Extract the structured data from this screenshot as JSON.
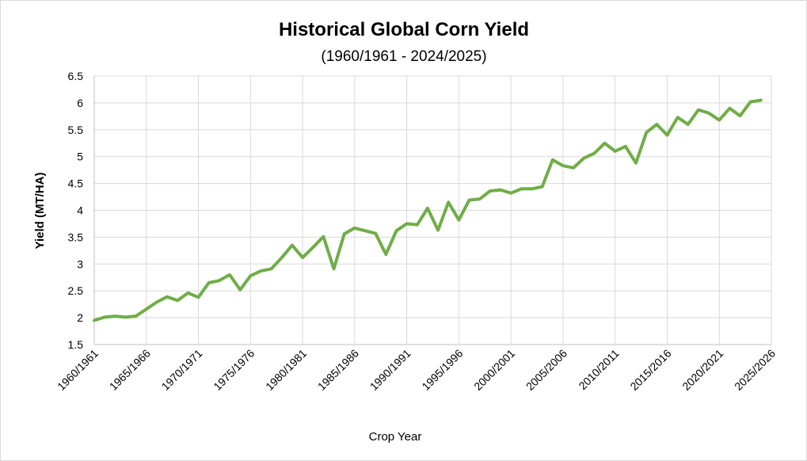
{
  "chart_data": {
    "type": "line",
    "title": "Historical Global Corn Yield",
    "subtitle": "(1960/1961 - 2024/2025)",
    "xlabel": "Crop Year",
    "ylabel": "Yield  (MT/HA)",
    "ylim": [
      1.5,
      6.5
    ],
    "yticks": [
      "1.5",
      "2",
      "2.5",
      "3",
      "3.5",
      "4",
      "4.5",
      "5",
      "5.5",
      "6",
      "6.5"
    ],
    "xtick_labels": [
      "1960/1961",
      "1965/1966",
      "1970/1971",
      "1975/1976",
      "1980/1981",
      "1985/1986",
      "1990/1991",
      "1995/1996",
      "2000/2001",
      "2005/2006",
      "2010/2011",
      "2015/2016",
      "2020/2021",
      "2025/2026"
    ],
    "grid": true,
    "legend": "none",
    "line_color": "#70ad47",
    "series": [
      {
        "values": [
          1.95,
          2.01,
          2.03,
          2.01,
          2.03,
          2.16,
          2.29,
          2.39,
          2.32,
          2.46,
          2.38,
          2.65,
          2.69,
          2.8,
          2.52,
          2.78,
          2.87,
          2.91,
          3.12,
          3.35,
          3.12,
          3.31,
          3.51,
          2.91,
          3.56,
          3.67,
          3.62,
          3.57,
          3.18,
          3.62,
          3.75,
          3.73,
          4.04,
          3.63,
          4.15,
          3.82,
          4.19,
          4.21,
          4.36,
          4.38,
          4.32,
          4.4,
          4.4,
          4.44,
          4.94,
          4.83,
          4.79,
          4.97,
          5.06,
          5.25,
          5.1,
          5.19,
          4.88,
          5.45,
          5.6,
          5.4,
          5.73,
          5.6,
          5.87,
          5.81,
          5.68,
          5.9,
          5.76,
          6.02,
          6.05
        ]
      }
    ]
  }
}
